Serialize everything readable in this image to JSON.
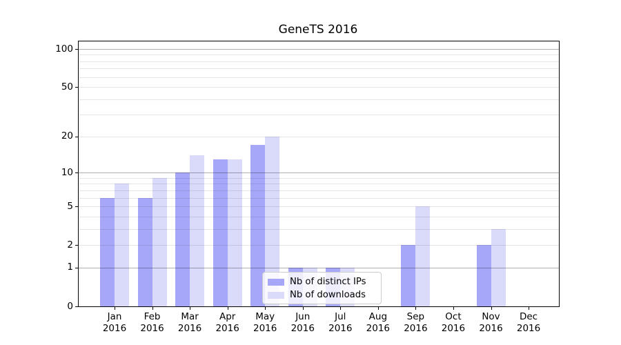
{
  "chart_data": {
    "type": "bar",
    "title": "GeneTS 2016",
    "categories": [
      "Jan 2016",
      "Feb 2016",
      "Mar 2016",
      "Apr 2016",
      "May 2016",
      "Jun 2016",
      "Jul 2016",
      "Aug 2016",
      "Sep 2016",
      "Oct 2016",
      "Nov 2016",
      "Dec 2016"
    ],
    "x_tick_months": [
      "Jan",
      "Feb",
      "Mar",
      "Apr",
      "May",
      "Jun",
      "Jul",
      "Aug",
      "Sep",
      "Oct",
      "Nov",
      "Dec"
    ],
    "x_tick_year": "2016",
    "series": [
      {
        "name": "Nb of distinct IPs",
        "color": "#a6a7f8",
        "values": [
          6,
          6,
          10,
          13,
          17,
          1,
          1,
          0,
          2,
          0,
          2,
          0
        ]
      },
      {
        "name": "Nb of downloads",
        "color": "#dadbfb",
        "values": [
          8,
          9,
          14,
          13,
          20,
          1,
          1,
          0,
          5,
          0,
          3,
          0
        ]
      }
    ],
    "yscale": "log1p",
    "ylabel": "",
    "xlabel": "",
    "yticks": [
      0,
      1,
      2,
      5,
      10,
      20,
      50,
      100
    ],
    "ylim": [
      0,
      115
    ],
    "grid": {
      "major_values": [
        1,
        10,
        100
      ],
      "minor_values": [
        2,
        3,
        4,
        5,
        6,
        7,
        8,
        9,
        20,
        30,
        40,
        50,
        60,
        70,
        80,
        90
      ],
      "major_color": "rgba(0,0,0,0.31)",
      "minor_color": "rgba(0,0,0,0.10)"
    },
    "legend": {
      "position": "lower center"
    }
  }
}
